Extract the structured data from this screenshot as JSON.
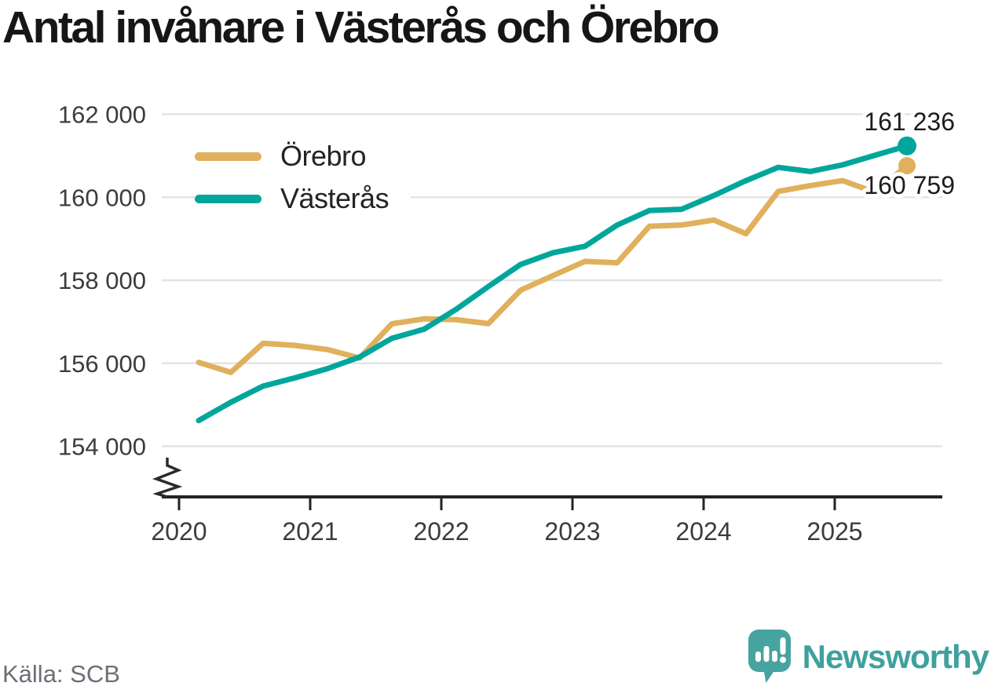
{
  "title": "Antal invånare i Västerås och Örebro",
  "legend": {
    "items": [
      {
        "label": "Örebro"
      },
      {
        "label": "Västerås"
      }
    ]
  },
  "end_labels": {
    "vasteras": "161 236",
    "orebro": "160 759"
  },
  "footer": {
    "source": "Källa: SCB",
    "brand": "Newsworthy"
  },
  "colors": {
    "orebro": "#E0B05C",
    "vasteras": "#00A69B",
    "grid": "#E4E4E4",
    "axis": "#232323",
    "text_dark": "#1D1D1D",
    "text_muted": "#6E6E77",
    "brand_teal": "#47A3A0"
  },
  "chart_data": {
    "type": "line",
    "title": "Antal invånare i Västerås och Örebro",
    "x_unit": "quarter",
    "x": [
      "2020-Q1",
      "2020-Q2",
      "2020-Q3",
      "2020-Q4",
      "2021-Q1",
      "2021-Q2",
      "2021-Q3",
      "2021-Q4",
      "2022-Q1",
      "2022-Q2",
      "2022-Q3",
      "2022-Q4",
      "2023-Q1",
      "2023-Q2",
      "2023-Q3",
      "2023-Q4",
      "2024-Q1",
      "2024-Q2",
      "2024-Q3",
      "2024-Q4",
      "2025-Q1",
      "2025-Q2",
      "2025-Q3"
    ],
    "series": [
      {
        "name": "Örebro",
        "color": "#E0B05C",
        "values": [
          156020,
          155780,
          156480,
          156430,
          156330,
          156125,
          156950,
          157070,
          157050,
          156955,
          157760,
          158110,
          158455,
          158420,
          159300,
          159330,
          159450,
          159120,
          160140,
          160280,
          160400,
          160120,
          160759
        ]
      },
      {
        "name": "Västerås",
        "color": "#00A69B",
        "values": [
          154620,
          155060,
          155450,
          155650,
          155870,
          156150,
          156600,
          156820,
          157300,
          157850,
          158380,
          158660,
          158820,
          159330,
          159680,
          159710,
          160040,
          160400,
          160720,
          160620,
          160780,
          161010,
          161236
        ]
      }
    ],
    "end_point_labels": {
      "Västerås": 161236,
      "Örebro": 160759
    },
    "ylim": [
      154000,
      162000
    ],
    "yticks": [
      162000,
      160000,
      158000,
      156000,
      154000
    ],
    "ytick_labels": [
      "162 000",
      "160 000",
      "158 000",
      "156 000",
      "154 000"
    ],
    "xticks": [
      2020,
      2021,
      2022,
      2023,
      2024,
      2025
    ],
    "grid": "horizontal",
    "axis_break": true,
    "legend_position": "inside-top-left"
  }
}
